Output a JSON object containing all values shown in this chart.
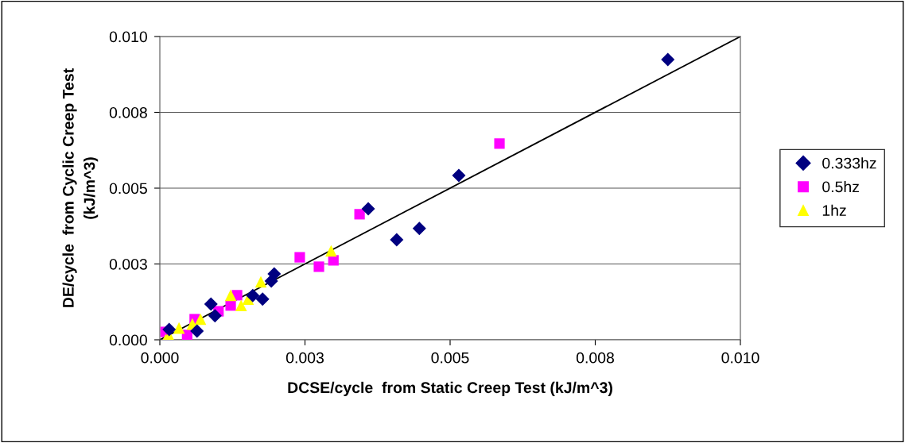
{
  "chart_data": {
    "type": "scatter",
    "xlabel": "DCSE/cycle  from Static Creep Test (kJ/m^3)",
    "ylabel": "DE/cycle  from Cyclic Creep Test\n(kJ/m^3)",
    "xlim": [
      0,
      0.01
    ],
    "ylim": [
      0,
      0.01
    ],
    "xticks": [
      {
        "value": 0,
        "label": "0.000"
      },
      {
        "value": 0.0025,
        "label": "0.003"
      },
      {
        "value": 0.005,
        "label": "0.005"
      },
      {
        "value": 0.0075,
        "label": "0.008"
      },
      {
        "value": 0.01,
        "label": "0.010"
      }
    ],
    "yticks": [
      {
        "value": 0,
        "label": "0.000"
      },
      {
        "value": 0.0025,
        "label": "0.003"
      },
      {
        "value": 0.005,
        "label": "0.005"
      },
      {
        "value": 0.0075,
        "label": "0.008"
      },
      {
        "value": 0.01,
        "label": "0.010"
      }
    ],
    "grid": "y",
    "legend": "right",
    "series": [
      {
        "name": "0.333hz",
        "color": "#000080",
        "marker": "diamond",
        "x": [
          0.00875,
          0.00515,
          0.00359,
          0.00447,
          0.00408,
          0.00197,
          0.00192,
          0.00177,
          0.0016,
          0.00088,
          0.00095,
          0.00064,
          0.00016
        ],
        "values": [
          0.00924,
          0.00542,
          0.00432,
          0.00367,
          0.0033,
          0.00217,
          0.00194,
          0.00134,
          0.00146,
          0.00118,
          0.00079,
          0.00029,
          0.00034
        ]
      },
      {
        "name": "0.5hz",
        "color": "#ff00ff",
        "marker": "square",
        "x": [
          0.00585,
          0.00344,
          0.00241,
          0.00299,
          0.00274,
          0.00133,
          0.00122,
          0.00101,
          0.0006,
          0.00047,
          0.0001
        ],
        "values": [
          0.00647,
          0.00414,
          0.00272,
          0.00262,
          0.00241,
          0.00147,
          0.00113,
          0.00094,
          0.00068,
          0.00016,
          0.00026
        ]
      },
      {
        "name": "1hz",
        "color": "#ffff00",
        "marker": "triangle",
        "x": [
          0.00295,
          0.00174,
          0.00122,
          0.0014,
          0.00152,
          0.0007,
          0.00056,
          0.00033,
          0.00016,
          0.0001
        ],
        "values": [
          0.00293,
          0.00191,
          0.00147,
          0.00113,
          0.00134,
          0.00068,
          0.00052,
          0.00039,
          0.00013,
          0
        ]
      },
      {
        "type": "line",
        "color": "#000000",
        "marker": "none",
        "x": [
          0,
          0.01
        ],
        "values": [
          0,
          0.01
        ]
      }
    ]
  }
}
